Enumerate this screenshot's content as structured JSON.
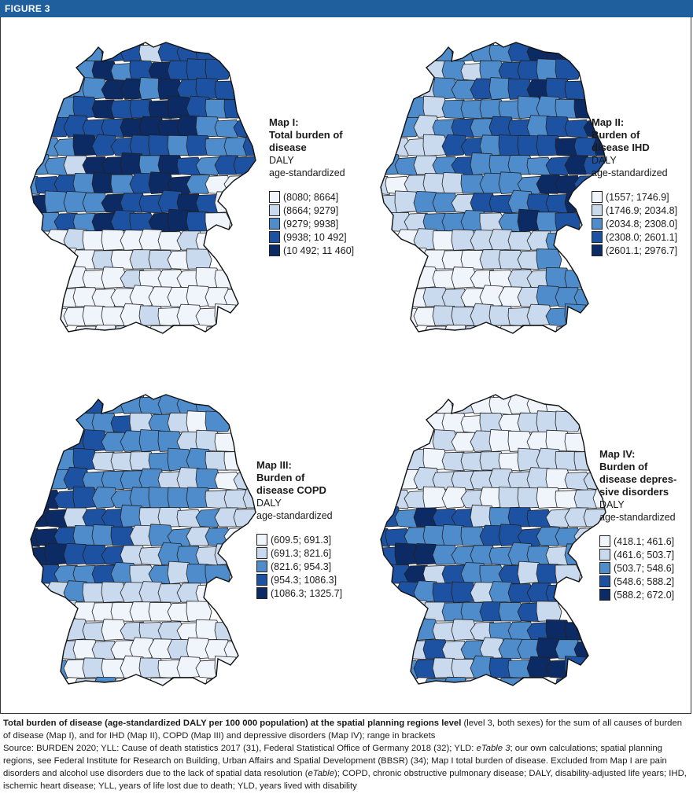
{
  "figure_label": "FIGURE 3",
  "palette": [
    "#f0f5fb",
    "#c9d9ee",
    "#4e8ccc",
    "#1d52a3",
    "#0c2a63"
  ],
  "maps": [
    {
      "title1": "Map I:",
      "title2": "Total burden of",
      "title3": "disease",
      "title4": "",
      "unit": "DALY",
      "method": "age-standardized",
      "ranges": [
        "(8080; 8664]",
        "(8664; 9279]",
        "(9279; 9938]",
        "(9938; 10 492]",
        "(10 492; 11 460]"
      ],
      "pattern": "total"
    },
    {
      "title1": "Map II:",
      "title2": "Burden of",
      "title3": "disease IHD",
      "title4": "",
      "unit": "DALY",
      "method": "age-standardized",
      "ranges": [
        "(1557; 1746.9]",
        "(1746.9; 2034.8]",
        "(2034.8; 2308.0]",
        "(2308.0; 2601.1]",
        "(2601.1; 2976.7]"
      ],
      "pattern": "ihd"
    },
    {
      "title1": "Map III:",
      "title2": "Burden of",
      "title3": "disease COPD",
      "title4": "",
      "unit": "DALY",
      "method": "age-standardized",
      "ranges": [
        "(609.5; 691.3]",
        "(691.3; 821.6]",
        "(821.6; 954.3]",
        "(954.3; 1086.3]",
        "(1086.3; 1325.7]"
      ],
      "pattern": "copd"
    },
    {
      "title1": "Map IV:",
      "title2": "Burden of",
      "title3": "disease depres-",
      "title4": "sive disorders",
      "unit": "DALY",
      "method": "age-standardized",
      "ranges": [
        "(418.1; 461.6]",
        "(461.6; 503.7]",
        "(503.7; 548.6]",
        "(548.6; 588.2]",
        "(588.2; 672.0]"
      ],
      "pattern": "dep"
    }
  ],
  "caption": {
    "bold": "Total burden of disease (age-standardized DALY per 100 000 population) at the spatial planning regions level",
    "line1_rest": " (level 3, both sexes) for the sum of all causes of burden of disease (Map I), and for IHD (Map II), COPD (Map III) and depressive disorders (Map IV); range in brackets",
    "source_a": "Source: BURDEN 2020; YLL: Cause of death statistics 2017 (31), Federal Statistical Office of Germany 2018 (32); YLD: ",
    "source_italic1": "eTable 3",
    "source_b": "; our own calculations; spatial planning regions, see Federal Institute for Research on Building, Urban Affairs and Spatial Development (BBSR) (34); Map I total burden of disease. Excluded from Map I are pain disorders and alcohol use disorders due to the lack of spatial data resolution (",
    "source_italic2": "eTable",
    "source_c": "); COPD, chronic obstructive pulmonary disease; DALY, disability-adjusted life years; IHD, ischemic heart disease; YLL, years of life lost due to death; YLD, years lived with disability"
  }
}
